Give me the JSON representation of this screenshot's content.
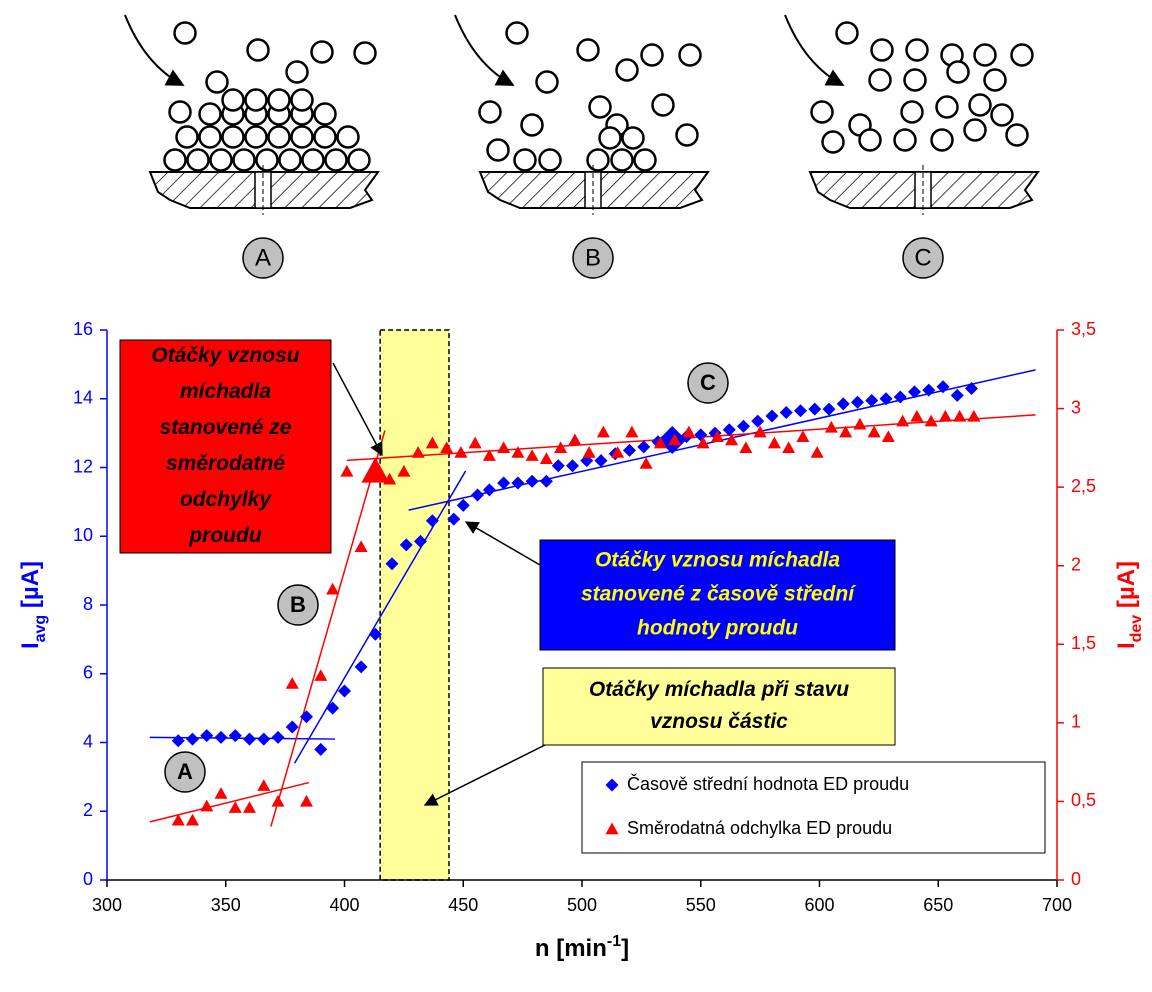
{
  "diagram": {
    "labels": [
      "A",
      "B",
      "C"
    ]
  },
  "chart_data": {
    "type": "scatter",
    "xlabel": {
      "text": "n [min",
      "sup": "-1",
      "end": "]"
    },
    "ylabel": {
      "text": "I",
      "sub": "avg",
      "end": " [µA]",
      "color": "#0000ff"
    },
    "y2label": {
      "text": "I",
      "sub": "dev",
      "end": " [µA]",
      "color": "#ff0000"
    },
    "xlim": [
      300,
      700
    ],
    "xticks": [
      300,
      350,
      400,
      450,
      500,
      550,
      600,
      650,
      700
    ],
    "ylim": [
      0,
      16
    ],
    "yticks": [
      0,
      2,
      4,
      6,
      8,
      10,
      12,
      14,
      16
    ],
    "y2lim": [
      0,
      3.5
    ],
    "y2ticks": [
      0,
      {
        "value": 0.5,
        "label": "0,5"
      },
      1,
      {
        "value": 1.5,
        "label": "1,5"
      },
      2,
      {
        "value": 2.5,
        "label": "2,5"
      },
      3,
      {
        "value": 3.5,
        "label": "3,5"
      }
    ],
    "band": {
      "xlim": [
        415,
        444
      ],
      "color": "#ffff99"
    },
    "series": [
      {
        "name": "Časově střední hodnota ED proudu",
        "color": "#0000ff",
        "marker": "diamond",
        "axis": "y",
        "large_points": [
          35
        ],
        "x": [
          330,
          336,
          342,
          348,
          354,
          360,
          366,
          372,
          378,
          384,
          390,
          395,
          400,
          407,
          413,
          420,
          426,
          432,
          437,
          446,
          450,
          456,
          461,
          467,
          473,
          479,
          485,
          490,
          496,
          502,
          508,
          514,
          520,
          526,
          532,
          538,
          544,
          550,
          556,
          562,
          568,
          574,
          580,
          586,
          592,
          598,
          604,
          610,
          616,
          622,
          628,
          634,
          640,
          646,
          652,
          658,
          664
        ],
        "values": [
          4.05,
          4.1,
          4.2,
          4.15,
          4.2,
          4.1,
          4.1,
          4.15,
          4.45,
          4.75,
          3.8,
          5.0,
          5.5,
          6.2,
          7.15,
          9.2,
          9.75,
          9.85,
          10.45,
          10.5,
          10.9,
          11.2,
          11.35,
          11.55,
          11.55,
          11.6,
          11.6,
          12.05,
          12.05,
          12.2,
          12.2,
          12.4,
          12.5,
          12.6,
          12.75,
          12.8,
          12.9,
          12.95,
          13.0,
          13.1,
          13.2,
          13.35,
          13.5,
          13.6,
          13.65,
          13.7,
          13.7,
          13.85,
          13.9,
          13.95,
          14.0,
          14.05,
          14.2,
          14.25,
          14.35,
          14.1,
          14.3
        ]
      },
      {
        "name": "Směrodatná odchylka ED proudu",
        "color": "#ff0000",
        "marker": "triangle",
        "axis": "y2",
        "large_points": [
          14
        ],
        "x": [
          330,
          336,
          342,
          348,
          354,
          360,
          366,
          372,
          378,
          384,
          390,
          395,
          401,
          407,
          413,
          419,
          425,
          431,
          437,
          443,
          449,
          455,
          461,
          467,
          473,
          479,
          485,
          491,
          497,
          503,
          509,
          515,
          521,
          527,
          533,
          539,
          545,
          551,
          557,
          563,
          569,
          575,
          581,
          587,
          593,
          599,
          605,
          611,
          617,
          623,
          629,
          635,
          641,
          647,
          653,
          659,
          665
        ],
        "values": [
          0.38,
          0.38,
          0.47,
          0.55,
          0.46,
          0.46,
          0.6,
          0.5,
          1.25,
          0.5,
          1.3,
          1.85,
          2.6,
          2.12,
          2.6,
          2.55,
          2.6,
          2.72,
          2.78,
          2.75,
          2.72,
          2.78,
          2.7,
          2.75,
          2.72,
          2.7,
          2.68,
          2.75,
          2.8,
          2.72,
          2.85,
          2.72,
          2.85,
          2.65,
          2.78,
          2.8,
          2.85,
          2.78,
          2.82,
          2.8,
          2.75,
          2.85,
          2.78,
          2.75,
          2.82,
          2.72,
          2.88,
          2.85,
          2.9,
          2.85,
          2.82,
          2.92,
          2.95,
          2.92,
          2.95,
          2.95,
          2.95
        ]
      }
    ],
    "trend_lines": [
      {
        "color": "#0000ff",
        "axis": "y",
        "x": [
          318,
          396
        ],
        "y": [
          4.15,
          4.1
        ]
      },
      {
        "color": "#0000ff",
        "axis": "y",
        "x": [
          379,
          451
        ],
        "y": [
          3.4,
          11.9
        ]
      },
      {
        "color": "#0000ff",
        "axis": "y",
        "x": [
          427,
          691
        ],
        "y": [
          10.76,
          14.84
        ]
      },
      {
        "color": "#ff0000",
        "axis": "y2",
        "x": [
          318,
          385
        ],
        "y": [
          0.37,
          0.62
        ]
      },
      {
        "color": "#ff0000",
        "axis": "y2",
        "x": [
          369,
          417
        ],
        "y": [
          0.34,
          2.86
        ]
      },
      {
        "color": "#ff0000",
        "axis": "y2",
        "x": [
          401,
          691
        ],
        "y": [
          2.67,
          2.96
        ]
      }
    ],
    "point_labels": [
      "A",
      "B",
      "C"
    ],
    "annotations": [
      {
        "lines": [
          "Otáčky vznosu",
          "míchadla",
          "stanovené ze",
          "směrodatné",
          "odchylky",
          "proudu"
        ],
        "fill": "#ff0000",
        "text_color": "#000000"
      },
      {
        "lines": [
          "Otáčky vznosu míchadla",
          "stanovené z časově střední",
          "hodnoty proudu"
        ],
        "fill": "#0000ff",
        "text_color": "#ffff00"
      },
      {
        "lines": [
          "Otáčky míchadla při stavu",
          "vznosu částic"
        ],
        "fill": "#ffff99",
        "text_color": "#000000"
      }
    ]
  }
}
